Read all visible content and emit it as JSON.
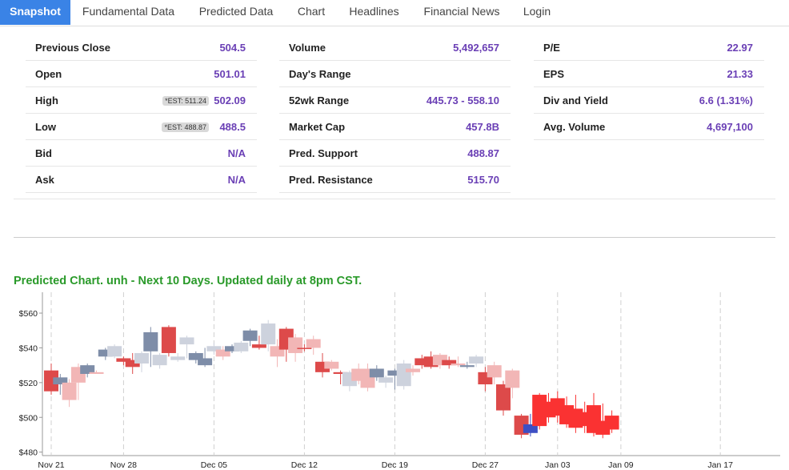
{
  "tabs": [
    "Snapshot",
    "Fundamental Data",
    "Predicted Data",
    "Chart",
    "Headlines",
    "Financial News",
    "Login"
  ],
  "col1": [
    {
      "label": "Previous Close",
      "value": "504.5"
    },
    {
      "label": "Open",
      "value": "501.01"
    },
    {
      "label": "High",
      "value": "502.09",
      "est": "*EST: 511.24"
    },
    {
      "label": "Low",
      "value": "488.5",
      "est": "*EST: 488.87"
    },
    {
      "label": "Bid",
      "value": "N/A"
    },
    {
      "label": "Ask",
      "value": "N/A"
    }
  ],
  "col2": [
    {
      "label": "Volume",
      "value": "5,492,657"
    },
    {
      "label": "Day's Range",
      "value": ""
    },
    {
      "label": "52wk Range",
      "value": "445.73 - 558.10"
    },
    {
      "label": "Market Cap",
      "value": "457.8B"
    },
    {
      "label": "Pred. Support",
      "value": "488.87"
    },
    {
      "label": "Pred. Resistance",
      "value": "515.70"
    }
  ],
  "col3": [
    {
      "label": "P/E",
      "value": "22.97"
    },
    {
      "label": "EPS",
      "value": "21.33"
    },
    {
      "label": "Div and Yield",
      "value": "6.6 (1.31%)"
    },
    {
      "label": "Avg. Volume",
      "value": "4,697,100"
    }
  ],
  "chart_title": "Predicted Chart. unh - Next 10 Days. Updated daily at 8pm CST.",
  "chart_data": {
    "type": "candlestick",
    "y_ticks": [
      "$480",
      "$500",
      "$520",
      "$540",
      "$560"
    ],
    "x_ticks": [
      "Nov 21",
      "Nov 28",
      "Dec 05",
      "Dec 12",
      "Dec 19",
      "Dec 27",
      "Jan 03",
      "Jan 09",
      "Jan 17"
    ],
    "ylim": [
      478,
      572
    ],
    "colors": {
      "dark_red": "#dd4a4a",
      "light_red": "#f2b6b6",
      "gray_blue": "#7e8da8",
      "light_gray": "#cdd2dd",
      "bright_red": "#fa3232",
      "blue": "#3d4fc4"
    },
    "candles": [
      {
        "o": 527,
        "c": 515,
        "h": 531,
        "l": 513,
        "color": "dark_red"
      },
      {
        "o": 523,
        "c": 519,
        "h": 525,
        "l": 513,
        "color": "gray_blue"
      },
      {
        "o": 520,
        "c": 510,
        "h": 522,
        "l": 506,
        "color": "light_red"
      },
      {
        "o": 520,
        "c": 529,
        "h": 531,
        "l": 510,
        "color": "light_red"
      },
      {
        "o": 525,
        "c": 530,
        "h": 531,
        "l": 523,
        "color": "gray_blue"
      },
      {
        "o": 526,
        "c": 525,
        "h": 527,
        "l": 525,
        "color": "light_red"
      },
      {
        "o": 535,
        "c": 539,
        "h": 540,
        "l": 533,
        "color": "gray_blue"
      },
      {
        "o": 535,
        "c": 541,
        "h": 542,
        "l": 534,
        "color": "light_gray"
      },
      {
        "o": 532,
        "c": 534,
        "h": 535,
        "l": 530,
        "color": "dark_red"
      },
      {
        "o": 529,
        "c": 533,
        "h": 537,
        "l": 525,
        "color": "dark_red"
      },
      {
        "o": 531,
        "c": 537,
        "h": 538,
        "l": 526,
        "color": "light_gray"
      },
      {
        "o": 538,
        "c": 549,
        "h": 552,
        "l": 529,
        "color": "gray_blue"
      },
      {
        "o": 530,
        "c": 536,
        "h": 537,
        "l": 528,
        "color": "light_gray"
      },
      {
        "o": 552,
        "c": 537,
        "h": 553,
        "l": 535,
        "color": "dark_red"
      },
      {
        "o": 533,
        "c": 535,
        "h": 537,
        "l": 532,
        "color": "light_gray"
      },
      {
        "o": 542,
        "c": 546,
        "h": 547,
        "l": 534,
        "color": "light_gray"
      },
      {
        "o": 533,
        "c": 537,
        "h": 538,
        "l": 531,
        "color": "gray_blue"
      },
      {
        "o": 530,
        "c": 534,
        "h": 540,
        "l": 529,
        "color": "gray_blue"
      },
      {
        "o": 538,
        "c": 541,
        "h": 543,
        "l": 536,
        "color": "light_gray"
      },
      {
        "o": 535,
        "c": 539,
        "h": 541,
        "l": 533,
        "color": "light_red"
      },
      {
        "o": 538,
        "c": 541,
        "h": 542,
        "l": 537,
        "color": "gray_blue"
      },
      {
        "o": 538,
        "c": 543,
        "h": 544,
        "l": 537,
        "color": "light_gray"
      },
      {
        "o": 544,
        "c": 550,
        "h": 551,
        "l": 541,
        "color": "gray_blue"
      },
      {
        "o": 542,
        "c": 540,
        "h": 547,
        "l": 539,
        "color": "dark_red"
      },
      {
        "o": 542,
        "c": 554,
        "h": 556,
        "l": 538,
        "color": "light_gray"
      },
      {
        "o": 535,
        "c": 541,
        "h": 545,
        "l": 529,
        "color": "light_red"
      },
      {
        "o": 551,
        "c": 539,
        "h": 552,
        "l": 532,
        "color": "dark_red"
      },
      {
        "o": 537,
        "c": 546,
        "h": 548,
        "l": 532,
        "color": "light_red"
      },
      {
        "o": 540,
        "c": 540,
        "h": 542,
        "l": 538,
        "color": "dark_red"
      },
      {
        "o": 540,
        "c": 545,
        "h": 547,
        "l": 536,
        "color": "light_red"
      },
      {
        "o": 532,
        "c": 526,
        "h": 537,
        "l": 523,
        "color": "dark_red"
      },
      {
        "o": 532,
        "c": 528,
        "h": 533,
        "l": 527,
        "color": "light_red"
      },
      {
        "o": 526,
        "c": 525,
        "h": 527,
        "l": 519,
        "color": "dark_red"
      },
      {
        "o": 518,
        "c": 526,
        "h": 527,
        "l": 515,
        "color": "light_gray"
      },
      {
        "o": 521,
        "c": 528,
        "h": 531,
        "l": 519,
        "color": "light_red"
      },
      {
        "o": 528,
        "c": 517,
        "h": 531,
        "l": 515,
        "color": "light_red"
      },
      {
        "o": 523,
        "c": 528,
        "h": 530,
        "l": 521,
        "color": "gray_blue"
      },
      {
        "o": 520,
        "c": 523,
        "h": 524,
        "l": 517,
        "color": "light_gray"
      },
      {
        "o": 524,
        "c": 527,
        "h": 528,
        "l": 516,
        "color": "gray_blue"
      },
      {
        "o": 518,
        "c": 531,
        "h": 533,
        "l": 516,
        "color": "light_gray"
      },
      {
        "o": 526,
        "c": 528,
        "h": 530,
        "l": 524,
        "color": "light_red"
      },
      {
        "o": 530,
        "c": 534,
        "h": 536,
        "l": 528,
        "color": "dark_red"
      },
      {
        "o": 535,
        "c": 529,
        "h": 538,
        "l": 528,
        "color": "dark_red"
      },
      {
        "o": 536,
        "c": 530,
        "h": 537,
        "l": 528,
        "color": "light_red"
      },
      {
        "o": 533,
        "c": 530,
        "h": 535,
        "l": 528,
        "color": "dark_red"
      },
      {
        "o": 531,
        "c": 530,
        "h": 535,
        "l": 529,
        "color": "light_red"
      },
      {
        "o": 530,
        "c": 529,
        "h": 532,
        "l": 528,
        "color": "gray_blue"
      },
      {
        "o": 531,
        "c": 535,
        "h": 536,
        "l": 529,
        "color": "light_gray"
      },
      {
        "o": 526,
        "c": 519,
        "h": 529,
        "l": 515,
        "color": "dark_red"
      },
      {
        "o": 530,
        "c": 523,
        "h": 532,
        "l": 519,
        "color": "light_red"
      },
      {
        "o": 519,
        "c": 504,
        "h": 521,
        "l": 501,
        "color": "dark_red"
      },
      {
        "o": 527,
        "c": 517,
        "h": 528,
        "l": 511,
        "color": "light_red"
      },
      {
        "o": 501,
        "c": 490,
        "h": 502,
        "l": 488,
        "color": "dark_red"
      },
      {
        "o": 491,
        "c": 496,
        "h": 502,
        "l": 489,
        "color": "blue"
      },
      {
        "o": 495,
        "c": 513,
        "h": 514,
        "l": 493,
        "color": "bright_red"
      },
      {
        "o": 509,
        "c": 500,
        "h": 514,
        "l": 497,
        "color": "bright_red"
      },
      {
        "o": 511,
        "c": 501,
        "h": 515,
        "l": 497,
        "color": "bright_red"
      },
      {
        "o": 507,
        "c": 496,
        "h": 512,
        "l": 494,
        "color": "bright_red"
      },
      {
        "o": 505,
        "c": 494,
        "h": 513,
        "l": 491,
        "color": "bright_red"
      },
      {
        "o": 503,
        "c": 495,
        "h": 509,
        "l": 491,
        "color": "bright_red"
      },
      {
        "o": 507,
        "c": 491,
        "h": 514,
        "l": 489,
        "color": "bright_red"
      },
      {
        "o": 498,
        "c": 490,
        "h": 508,
        "l": 488,
        "color": "bright_red"
      },
      {
        "o": 501,
        "c": 493,
        "h": 504,
        "l": 491,
        "color": "bright_red"
      }
    ]
  }
}
